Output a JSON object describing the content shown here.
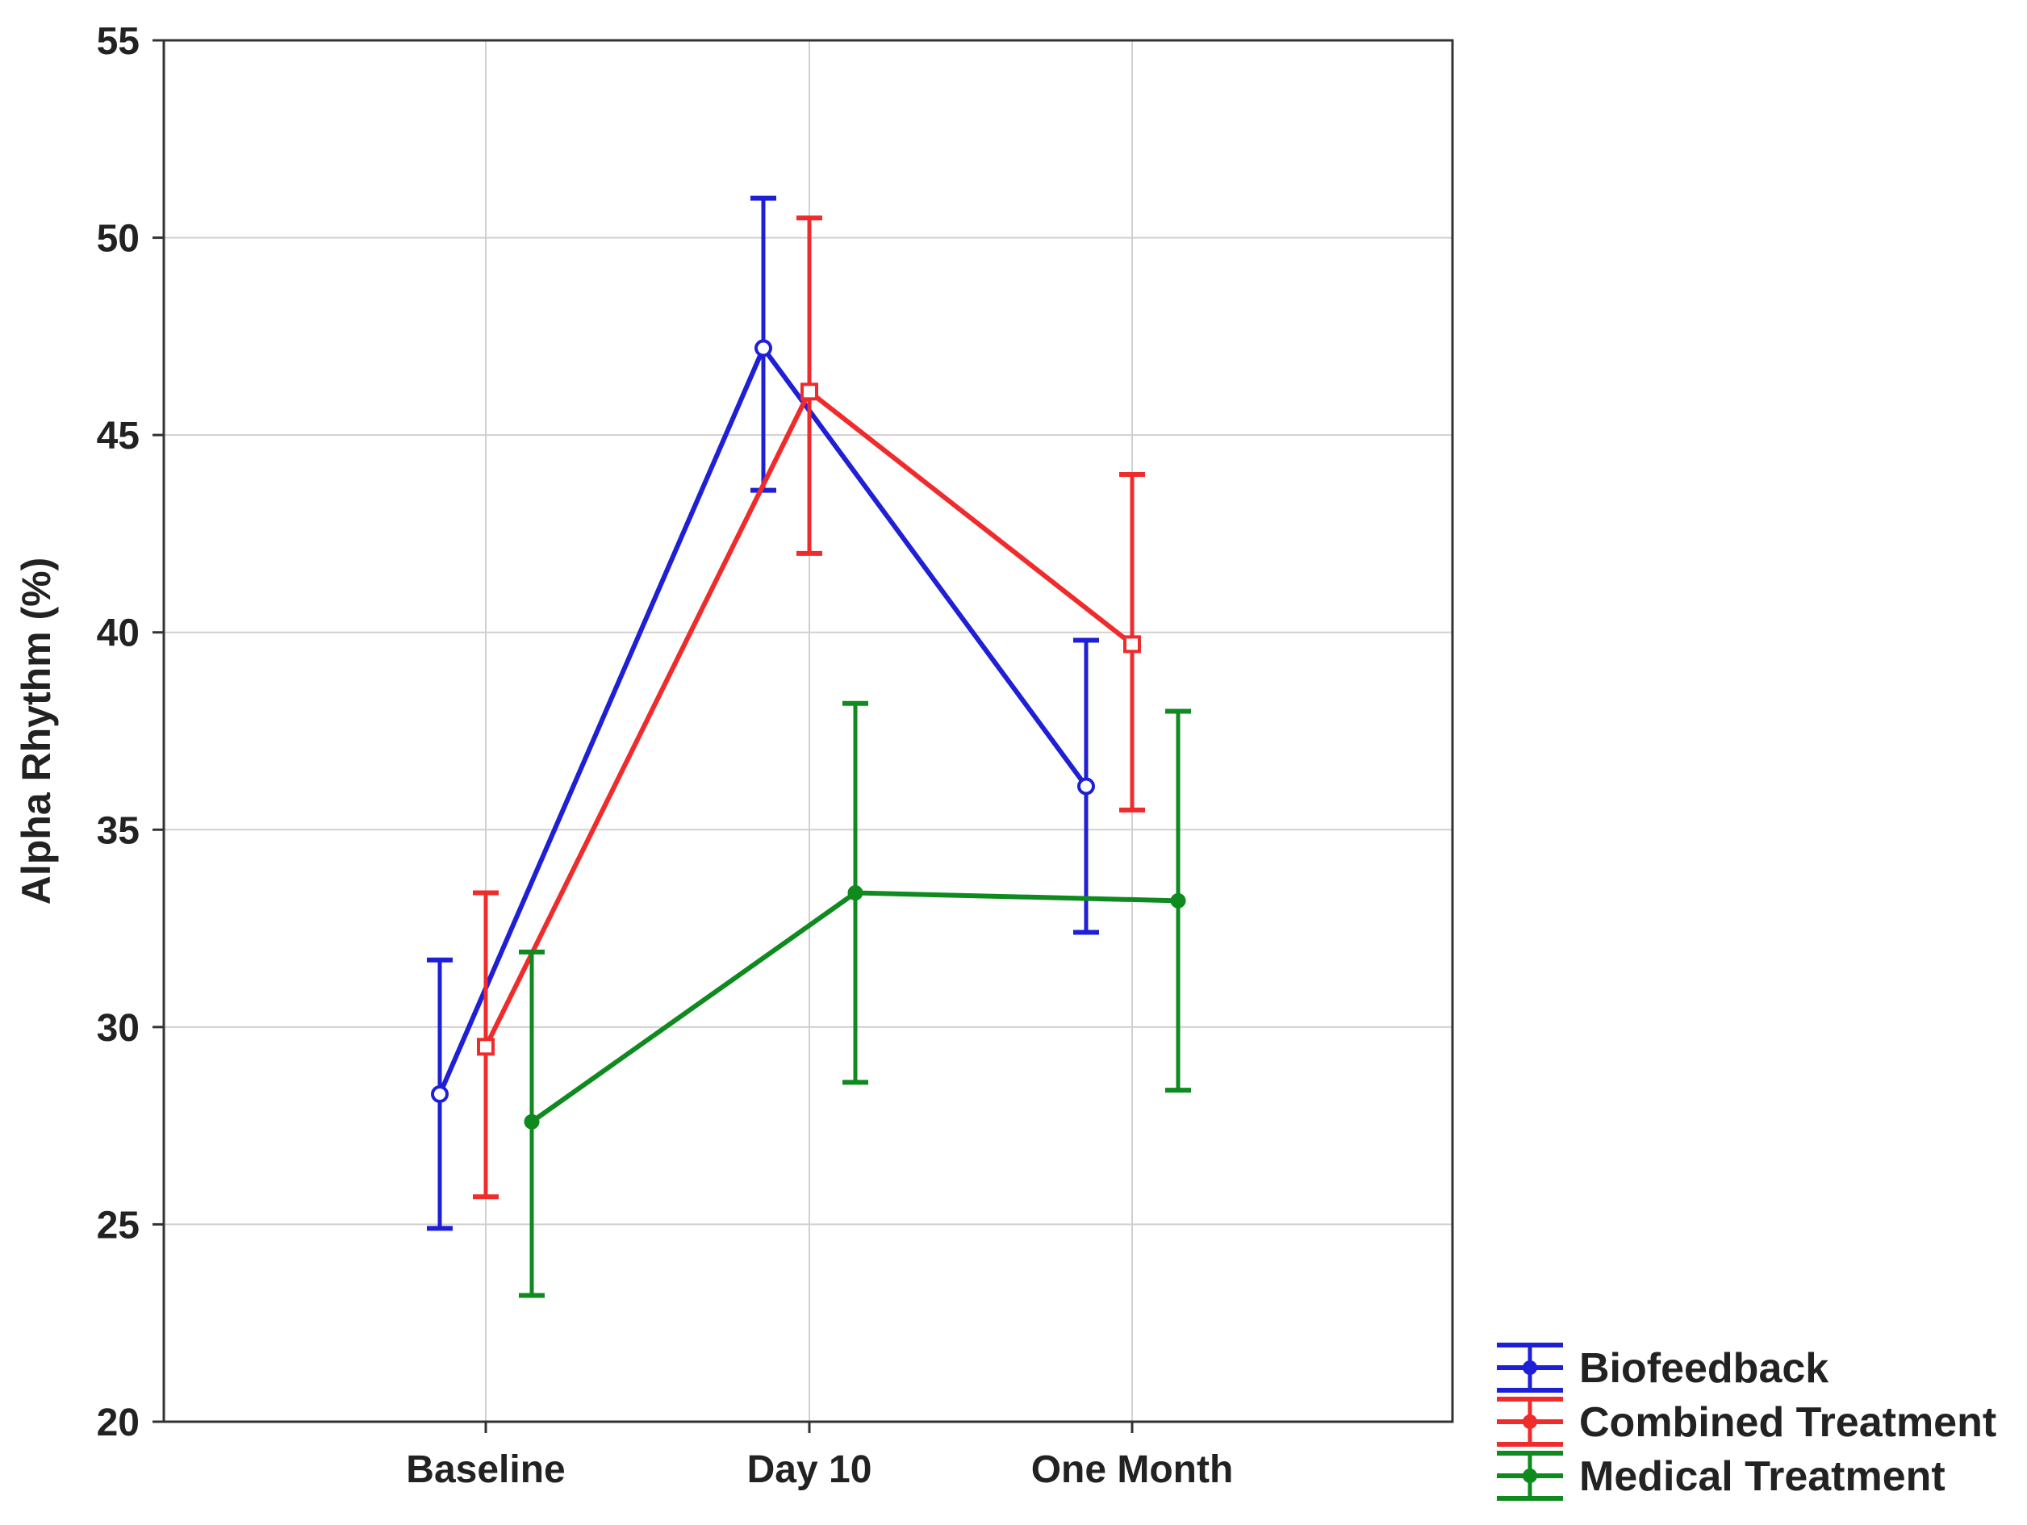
{
  "chart_data": {
    "type": "line",
    "title": "",
    "xlabel": "",
    "ylabel": "Alpha Rhythm (%)",
    "ylim": [
      20,
      55
    ],
    "yticks": [
      20,
      25,
      30,
      35,
      40,
      45,
      50,
      55
    ],
    "categories": [
      "Baseline",
      "Day 10",
      "One Month"
    ],
    "grid": true,
    "error_bars": true,
    "legend_position": "bottom-right outside",
    "series": [
      {
        "name": "Biofeedback",
        "color": "#1f1fd6",
        "marker": "circle",
        "values": [
          28.3,
          47.2,
          36.1
        ],
        "err_low": [
          24.9,
          43.6,
          32.4
        ],
        "err_high": [
          31.7,
          51.0,
          39.8
        ]
      },
      {
        "name": "Combined Treatment",
        "color": "#f02b2b",
        "marker": "square",
        "values": [
          29.5,
          46.1,
          39.7
        ],
        "err_low": [
          25.7,
          42.0,
          35.5
        ],
        "err_high": [
          33.4,
          50.5,
          44.0
        ]
      },
      {
        "name": "Medical Treatment",
        "color": "#0f8a1f",
        "marker": "diamond",
        "values": [
          27.6,
          33.4,
          33.2
        ],
        "err_low": [
          23.2,
          28.6,
          28.4
        ],
        "err_high": [
          31.9,
          38.2,
          38.0
        ]
      }
    ]
  }
}
